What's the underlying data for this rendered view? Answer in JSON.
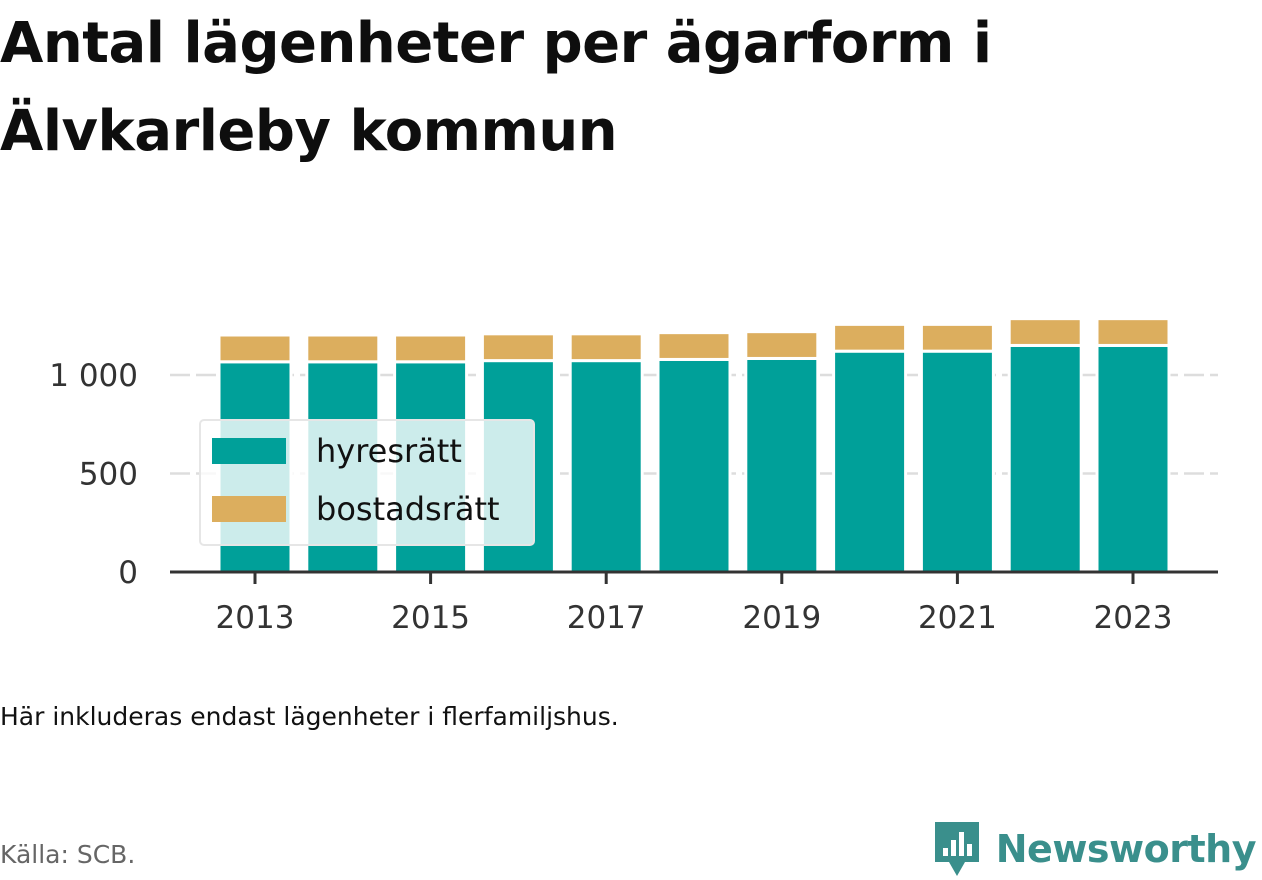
{
  "title": "Antal lägenheter per ägarform i Älvkarleby kommun",
  "note": "Här inkluderas endast lägenheter i flerfamiljshus.",
  "source": "Källa: SCB.",
  "brand": {
    "name": "Newsworthy",
    "icon": "newsworthy-logo-icon",
    "color": "#3a8f8c"
  },
  "colors": {
    "hyresratt": "#00a099",
    "bostadsratt": "#dcae5e",
    "gridline": "#dddddd",
    "axis": "#333333"
  },
  "chart_data": {
    "type": "bar",
    "stacked": true,
    "categories": [
      "2013",
      "2014",
      "2015",
      "2016",
      "2017",
      "2018",
      "2019",
      "2020",
      "2021",
      "2022",
      "2023"
    ],
    "x_tick_labels": [
      "2013",
      "2015",
      "2017",
      "2019",
      "2021",
      "2023"
    ],
    "series": [
      {
        "name": "hyresrätt",
        "color": "#00a099",
        "values": [
          1067,
          1067,
          1067,
          1073,
          1073,
          1079,
          1084,
          1121,
          1121,
          1150,
          1150
        ]
      },
      {
        "name": "bostadsrätt",
        "color": "#dcae5e",
        "values": [
          136,
          136,
          136,
          136,
          136,
          136,
          136,
          136,
          136,
          136,
          136
        ]
      }
    ],
    "y_ticks": [
      0,
      500,
      1000
    ],
    "y_tick_labels": [
      "0",
      "500",
      "1 000"
    ],
    "ylim": [
      0,
      1400
    ],
    "grid": true,
    "legend": {
      "position": "inside-left"
    }
  }
}
